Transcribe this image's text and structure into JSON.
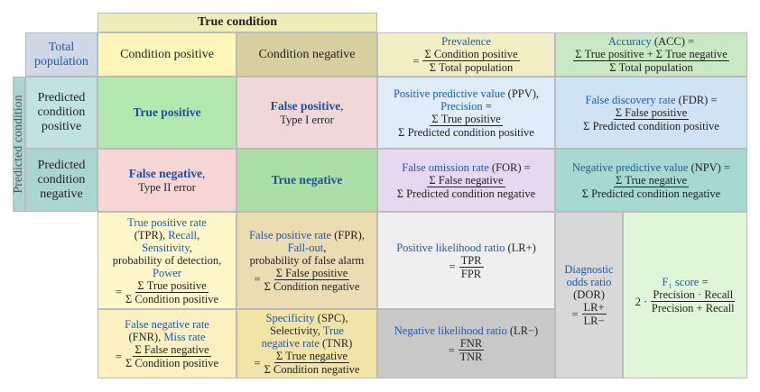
{
  "header": "True condition",
  "side_label": "Predicted condition",
  "cells": [
    {
      "content": [
        {
          "line": [
            {
              "em": "Total population"
            }
          ]
        }
      ]
    },
    {
      "content": [
        {
          "line": [
            "Condition positive"
          ]
        }
      ]
    },
    {
      "content": [
        {
          "line": [
            "Condition negative"
          ]
        }
      ]
    },
    {
      "content": [
        {
          "line": [
            {
              "em": "Prevalence"
            }
          ]
        },
        {
          "fraction": {
            "lead": "=",
            "num": "Σ Condition positive",
            "den": "Σ Total population"
          }
        }
      ]
    },
    {
      "content": [
        {
          "line": [
            {
              "em": "Accuracy"
            },
            " (ACC) ="
          ]
        },
        {
          "fraction": {
            "num": "Σ True positive + Σ True negative",
            "den": "Σ Total population"
          }
        }
      ]
    },
    {
      "content": [
        {
          "line": [
            "Predicted condition positive"
          ]
        }
      ]
    },
    {
      "content": [
        {
          "line": [
            {
              "strong": "True positive"
            }
          ]
        }
      ]
    },
    {
      "content": [
        {
          "line": [
            {
              "strong": "False positive"
            },
            ","
          ]
        },
        {
          "line": [
            "Type I error"
          ]
        }
      ]
    },
    {
      "content": [
        {
          "line": [
            {
              "em": "Positive predictive value"
            },
            " (PPV),"
          ]
        },
        {
          "line": [
            {
              "em": "Precision"
            },
            " ="
          ]
        },
        {
          "fraction": {
            "num": "Σ True positive",
            "den": "Σ Predicted condition positive"
          }
        }
      ]
    },
    {
      "content": [
        {
          "line": [
            {
              "em": "False discovery rate"
            },
            " (FDR) ="
          ]
        },
        {
          "fraction": {
            "num": "Σ False positive",
            "den": "Σ Predicted condition positive"
          }
        }
      ]
    },
    {
      "content": [
        {
          "line": [
            "Predicted condition negative"
          ]
        }
      ]
    },
    {
      "content": [
        {
          "line": [
            {
              "strong": "False negative"
            },
            ","
          ]
        },
        {
          "line": [
            "Type II error"
          ]
        }
      ]
    },
    {
      "content": [
        {
          "line": [
            {
              "strong": "True negative"
            }
          ]
        }
      ]
    },
    {
      "content": [
        {
          "line": [
            {
              "em": "False omission rate"
            },
            " (FOR) ="
          ]
        },
        {
          "fraction": {
            "num": "Σ False negative",
            "den": "Σ Predicted condition negative"
          }
        }
      ]
    },
    {
      "content": [
        {
          "line": [
            {
              "em": "Negative predictive value"
            },
            " (NPV) ="
          ]
        },
        {
          "fraction": {
            "num": "Σ True negative",
            "den": "Σ Predicted condition negative"
          }
        }
      ]
    },
    {
      "content": [
        {
          "line": [
            {
              "em": "True positive rate"
            }
          ]
        },
        {
          "line": [
            "(TPR), ",
            {
              "em": "Recall"
            },
            ","
          ]
        },
        {
          "line": [
            {
              "em": "Sensitivity"
            },
            ","
          ]
        },
        {
          "line": [
            "probability of detection,"
          ]
        },
        {
          "line": [
            {
              "em": "Power"
            }
          ]
        },
        {
          "fraction": {
            "lead": "=",
            "num": "Σ True positive",
            "den": "Σ Condition positive"
          }
        }
      ]
    },
    {
      "content": [
        {
          "line": [
            {
              "em": "False positive rate"
            },
            " (FPR),"
          ]
        },
        {
          "line": [
            {
              "em": "Fall-out"
            },
            ","
          ]
        },
        {
          "line": [
            "probability of false alarm"
          ]
        },
        {
          "fraction": {
            "lead": "=",
            "num": "Σ False positive",
            "den": "Σ Condition negative"
          }
        }
      ]
    },
    {
      "content": [
        {
          "line": [
            {
              "em": "Positive likelihood ratio"
            },
            " (LR+)"
          ]
        },
        {
          "fraction": {
            "lead": "=",
            "num": "TPR",
            "den": "FPR"
          }
        }
      ]
    },
    {
      "content": [
        {
          "line": [
            {
              "em": "Diagnostic"
            }
          ]
        },
        {
          "line": [
            {
              "em": "odds ratio"
            }
          ]
        },
        {
          "line": [
            "(DOR)"
          ]
        },
        {
          "fraction": {
            "lead": "=",
            "num": "LR+",
            "den": "LR−"
          }
        }
      ]
    },
    {
      "content": [
        {
          "line": [
            {
              "em": "F₁ score"
            },
            " ="
          ]
        },
        {
          "fraction": {
            "lead": "2 ·",
            "num": "Precision · Recall",
            "den": "Precision + Recall"
          }
        }
      ]
    },
    {
      "content": [
        {
          "line": [
            {
              "em": "False negative rate"
            }
          ]
        },
        {
          "line": [
            "(FNR), ",
            {
              "em": "Miss rate"
            }
          ]
        },
        {
          "fraction": {
            "lead": "=",
            "num": "Σ False negative",
            "den": "Σ Condition positive"
          }
        }
      ]
    },
    {
      "content": [
        {
          "line": [
            {
              "em": "Specificity"
            },
            " (SPC),"
          ]
        },
        {
          "line": [
            "Selectivity, ",
            {
              "em": "True"
            }
          ]
        },
        {
          "line": [
            {
              "em": "negative rate"
            },
            " (TNR)"
          ]
        },
        {
          "fraction": {
            "lead": "=",
            "num": "Σ True negative",
            "den": "Σ Condition negative"
          }
        }
      ]
    },
    {
      "content": [
        {
          "line": [
            {
              "em": "Negative likelihood ratio"
            },
            " (LR−)"
          ]
        },
        {
          "fraction": {
            "lead": "=",
            "num": "FNR",
            "den": "TNR"
          }
        }
      ]
    }
  ]
}
